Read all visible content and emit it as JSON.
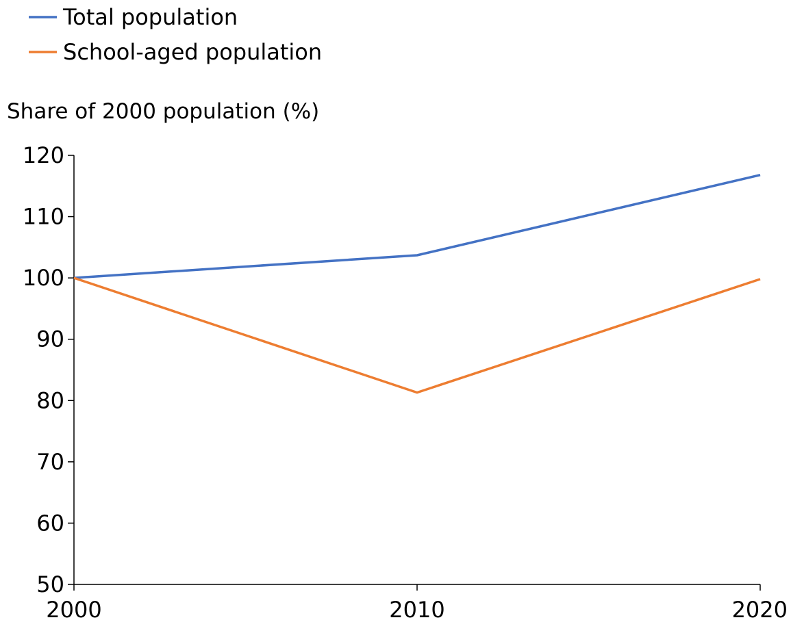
{
  "chart_data": {
    "type": "line",
    "title": "",
    "ylabel": "Share of 2000 population (%)",
    "xlabel": "",
    "x": [
      "2000",
      "2010",
      "2020"
    ],
    "ylim": [
      50,
      120
    ],
    "yticks": [
      50,
      60,
      70,
      80,
      90,
      100,
      110,
      120
    ],
    "grid": false,
    "legend_position": "top-left",
    "series": [
      {
        "name": "Total population",
        "color": "#4472C4",
        "values": [
          100,
          103.7,
          116.8
        ]
      },
      {
        "name": "School-aged population",
        "color": "#ED7D31",
        "values": [
          100,
          81.3,
          99.8
        ]
      }
    ]
  }
}
